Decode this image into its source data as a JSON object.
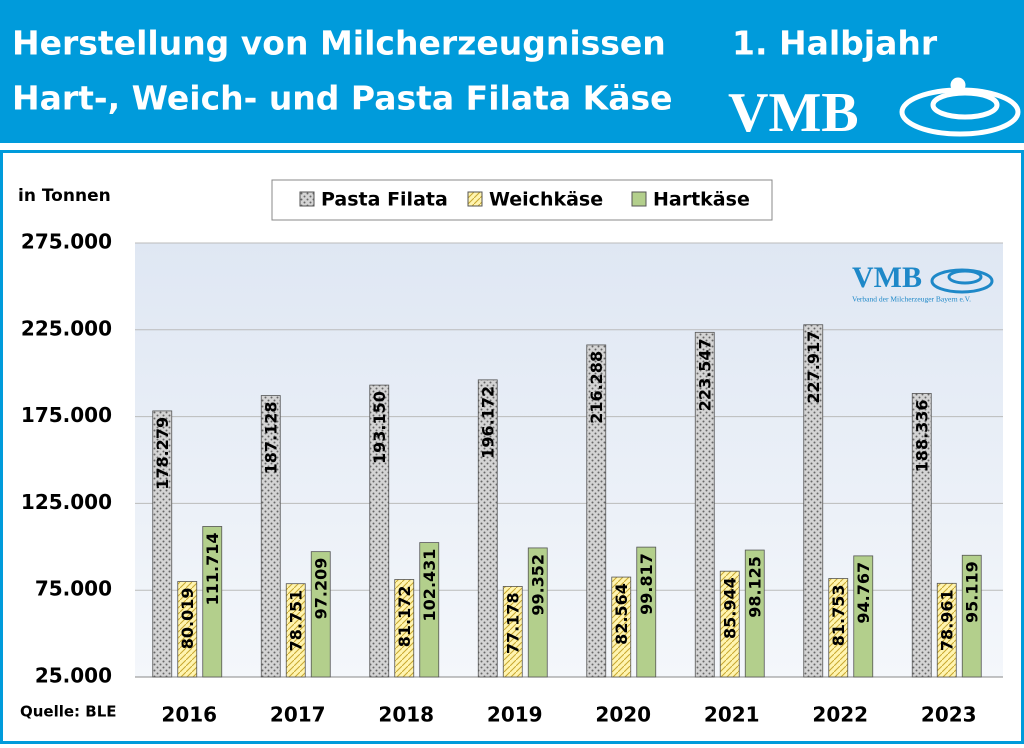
{
  "header": {
    "title_line1": "Herstellung von Milcherzeugnissen",
    "title_line2": "Hart-, Weich- und Pasta Filata Käse",
    "period": "1. Halbjahr",
    "logo": "VMB"
  },
  "chart_data": {
    "type": "bar",
    "ylabel": "in Tonnen",
    "source": "Quelle: BLE",
    "logo_text": "VMB",
    "logo_subtitle": "Verband der Milcherzeuger Bayern e.V.",
    "categories": [
      "2016",
      "2017",
      "2018",
      "2019",
      "2020",
      "2021",
      "2022",
      "2023"
    ],
    "series": [
      {
        "name": "Pasta Filata",
        "color": "#d4d4d4",
        "values": [
          178279,
          187128,
          193150,
          196172,
          216288,
          223547,
          227917,
          188336
        ],
        "value_labels": [
          "178.279",
          "187.128",
          "193.150",
          "196.172",
          "216.288",
          "223.547",
          "227.917",
          "188.336"
        ]
      },
      {
        "name": "Weichkäse",
        "color": "#fff4b0",
        "values": [
          80019,
          78751,
          81172,
          77178,
          82564,
          85944,
          81753,
          78961
        ],
        "value_labels": [
          "80.019",
          "78.751",
          "81.172",
          "77.178",
          "82.564",
          "85.944",
          "81.753",
          "78.961"
        ]
      },
      {
        "name": "Hartkäse",
        "color": "#b3cf8c",
        "values": [
          111714,
          97209,
          102431,
          99352,
          99817,
          98125,
          94767,
          95119
        ],
        "value_labels": [
          "111.714",
          "97.209",
          "102.431",
          "99.352",
          "99.817",
          "98.125",
          "94.767",
          "95.119"
        ]
      }
    ],
    "ylim": [
      25000,
      275000
    ],
    "yticks": [
      {
        "value": 25000,
        "label": "25.000"
      },
      {
        "value": 75000,
        "label": "75.000"
      },
      {
        "value": 125000,
        "label": "125.000"
      },
      {
        "value": 175000,
        "label": "175.000"
      },
      {
        "value": 225000,
        "label": "225.000"
      },
      {
        "value": 275000,
        "label": "275.000"
      }
    ],
    "grid": true,
    "legend": "top"
  }
}
